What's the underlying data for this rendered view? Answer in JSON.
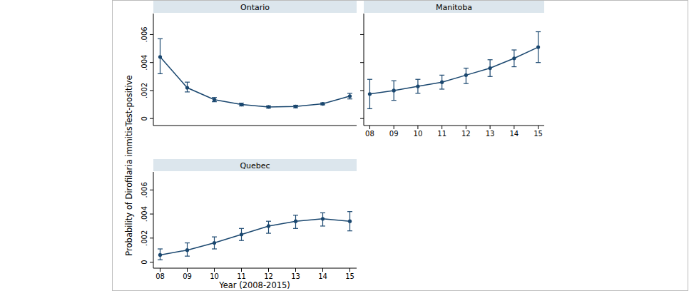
{
  "chart_data": {
    "type": "line",
    "x_label": "Year (2008-2015)",
    "y_label": "Probability of Dirofilaria immitisTest-positive",
    "x": [
      2008,
      2009,
      2010,
      2011,
      2012,
      2013,
      2014,
      2015
    ],
    "xlim": [
      2007.75,
      2015.25
    ],
    "xticks": [
      {
        "value": 2008,
        "label": "08"
      },
      {
        "value": 2009,
        "label": "09"
      },
      {
        "value": 2010,
        "label": "10"
      },
      {
        "value": 2011,
        "label": "11"
      },
      {
        "value": 2012,
        "label": "12"
      },
      {
        "value": 2013,
        "label": "13"
      },
      {
        "value": 2014,
        "label": "14"
      },
      {
        "value": 2015,
        "label": "15"
      }
    ],
    "ylim": [
      -0.0005,
      0.0075
    ],
    "yticks": [
      0,
      {
        "value": 0.002,
        "label": ".002"
      },
      {
        "value": 0.004,
        "label": ".004"
      },
      {
        "value": 0.006,
        "label": ".006"
      }
    ],
    "grid": false,
    "color": "#1a476f",
    "marker": "circle",
    "panels": [
      {
        "title": "Ontario",
        "values": [
          0.0044,
          0.0022,
          0.00135,
          0.001,
          0.00083,
          0.00086,
          0.00105,
          0.0016
        ],
        "ci_low": [
          0.0032,
          0.0019,
          0.0012,
          0.0009,
          0.00075,
          0.00077,
          0.00098,
          0.0014
        ],
        "ci_high": [
          0.0057,
          0.0026,
          0.0015,
          0.0011,
          0.0009,
          0.00095,
          0.00112,
          0.0018
        ]
      },
      {
        "title": "Manitoba",
        "values": [
          0.00175,
          0.002,
          0.0023,
          0.0026,
          0.0031,
          0.0036,
          0.0043,
          0.0051
        ],
        "ci_low": [
          0.0007,
          0.0013,
          0.0018,
          0.0021,
          0.0025,
          0.003,
          0.0037,
          0.004
        ],
        "ci_high": [
          0.0028,
          0.0027,
          0.0028,
          0.0031,
          0.0036,
          0.0042,
          0.0049,
          0.0062
        ]
      },
      {
        "title": "Quebec",
        "values": [
          0.0006,
          0.001,
          0.0016,
          0.0023,
          0.003,
          0.0034,
          0.0036,
          0.0034
        ],
        "ci_low": [
          0.0002,
          0.0005,
          0.0011,
          0.0018,
          0.0024,
          0.0028,
          0.003,
          0.0026
        ],
        "ci_high": [
          0.0011,
          0.0016,
          0.0021,
          0.0028,
          0.0034,
          0.0039,
          0.0041,
          0.0042
        ]
      }
    ]
  }
}
